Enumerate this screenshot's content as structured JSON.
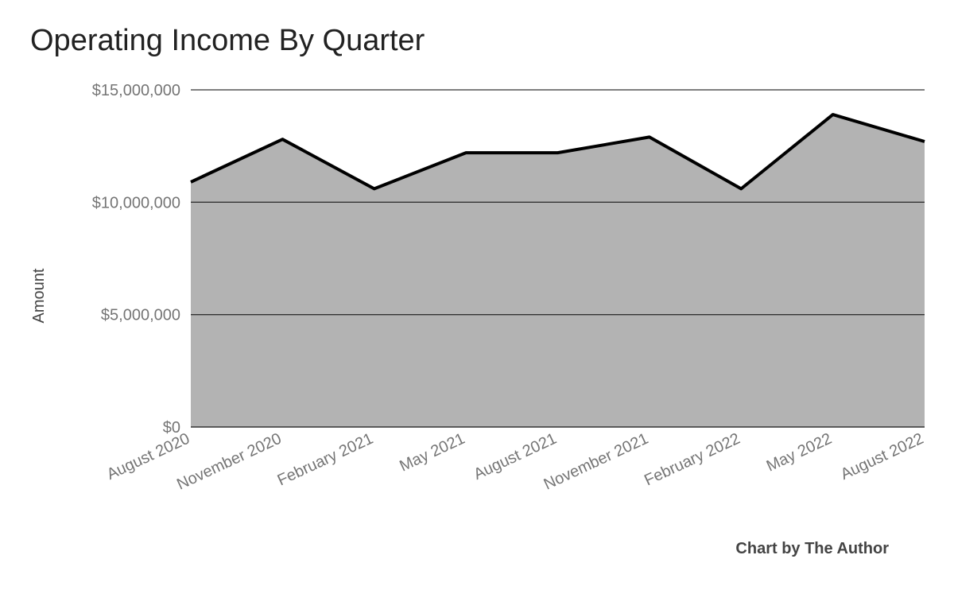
{
  "chart_data": {
    "type": "area",
    "title": "Operating Income By Quarter",
    "ylabel": "Amount",
    "xlabel": "",
    "categories": [
      "August 2020",
      "November 2020",
      "February 2021",
      "May 2021",
      "August 2021",
      "November 2021",
      "February 2022",
      "May 2022",
      "August 2022"
    ],
    "series": [
      {
        "values": [
          10900000,
          12800000,
          10600000,
          12200000,
          12200000,
          12900000,
          10600000,
          13900000,
          12700000
        ]
      }
    ],
    "ylim": [
      0,
      15000000
    ],
    "yticks": [
      "$0",
      "$5,000,000",
      "$10,000,000",
      "$15,000,000"
    ],
    "grid": true,
    "colors": {
      "fill": "#b3b3b3",
      "line": "#000000",
      "grid": "#333333"
    }
  },
  "credit": "Chart by The Author"
}
